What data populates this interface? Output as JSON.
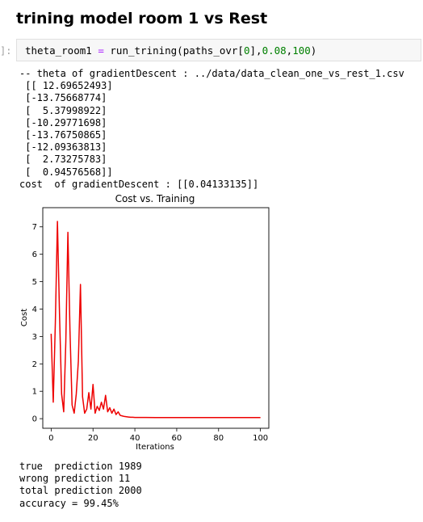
{
  "notebook": {
    "heading": "trining model room 1 vs Rest",
    "cell_prompt": "]:",
    "code": {
      "var": "theta_room1",
      "op": "=",
      "call": "run_trining(paths_ovr[",
      "idx": "0",
      "mid": "],",
      "arg2": "0.08",
      "comma": ",",
      "arg3": "100",
      "close": ")"
    },
    "output_lines": [
      "-- theta of gradientDescent : ../data/data_clean_one_vs_rest_1.csv",
      " [[ 12.69652493]",
      " [-13.75668774]",
      " [  5.37998922]",
      " [-10.29771698]",
      " [-13.76750865]",
      " [-12.09363813]",
      " [  2.73275783]",
      " [  0.94576568]]",
      "cost  of gradientDescent : [[0.04133135]]"
    ],
    "result_lines": [
      "true  prediction 1989",
      "wrong prediction 11",
      "total prediction 2000",
      "accuracy = 99.45%"
    ]
  },
  "chart_data": {
    "type": "line",
    "title": "Cost vs. Training",
    "xlabel": "Iterations",
    "ylabel": "Cost",
    "xlim": [
      -4,
      104
    ],
    "ylim": [
      -0.35,
      7.7
    ],
    "xticks": [
      0,
      20,
      40,
      60,
      80,
      100
    ],
    "yticks": [
      0,
      1,
      2,
      3,
      4,
      5,
      6,
      7
    ],
    "grid": false,
    "color": "#ee0000",
    "series": [
      {
        "x": [
          0,
          1,
          2,
          3,
          4,
          5,
          6,
          7,
          8,
          9,
          10,
          11,
          12,
          13,
          14,
          15,
          16,
          17,
          18,
          19,
          20,
          21,
          22,
          23,
          24,
          25,
          26,
          27,
          28,
          29,
          30,
          31,
          32,
          33,
          34,
          35,
          36,
          37,
          38,
          39,
          40,
          45,
          50,
          55,
          60,
          65,
          70,
          75,
          80,
          85,
          90,
          95,
          100
        ],
        "values": [
          3.1,
          0.6,
          3.5,
          7.2,
          3.8,
          0.9,
          0.25,
          2.8,
          6.8,
          3.2,
          0.5,
          0.2,
          0.9,
          2.1,
          4.9,
          0.8,
          0.2,
          0.35,
          0.95,
          0.35,
          1.25,
          0.2,
          0.45,
          0.3,
          0.6,
          0.35,
          0.85,
          0.25,
          0.4,
          0.2,
          0.35,
          0.15,
          0.25,
          0.12,
          0.1,
          0.08,
          0.07,
          0.06,
          0.05,
          0.05,
          0.045,
          0.043,
          0.042,
          0.042,
          0.042,
          0.041,
          0.041,
          0.041,
          0.041,
          0.041,
          0.041,
          0.041,
          0.041
        ]
      }
    ]
  }
}
